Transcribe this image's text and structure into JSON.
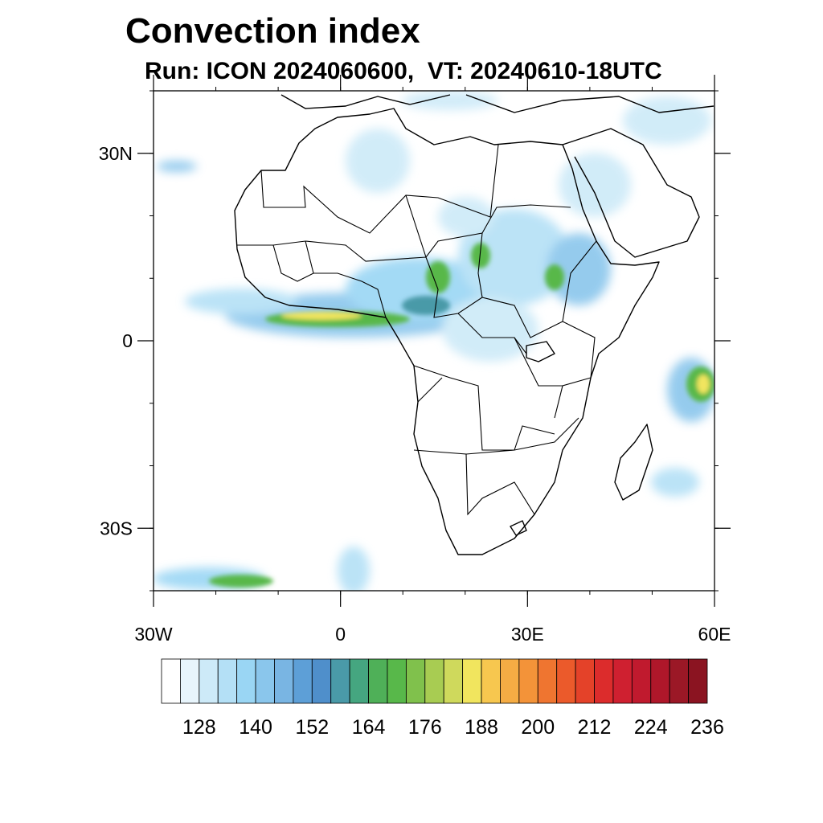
{
  "title": "Convection index",
  "subtitle": "Run: ICON 2024060600,  VT: 20240610-18UTC",
  "map": {
    "lon_range": [
      -30,
      60
    ],
    "lat_range": [
      -40,
      40
    ],
    "lat_ticks": [
      {
        "value": 30,
        "label": "30N"
      },
      {
        "value": 0,
        "label": "0"
      },
      {
        "value": -30,
        "label": "30S"
      }
    ],
    "lon_ticks": [
      {
        "value": -30,
        "label": "30W"
      },
      {
        "value": 0,
        "label": "0"
      },
      {
        "value": 30,
        "label": "30E"
      },
      {
        "value": 60,
        "label": "60E"
      }
    ]
  },
  "colorbar": {
    "colors": [
      "#ffffff",
      "#e8f5fc",
      "#cdeaf8",
      "#b4e0f6",
      "#9ad6f4",
      "#8ac6ec",
      "#79b5e3",
      "#5d9fd7",
      "#4f8fcb",
      "#4a9aa8",
      "#45a680",
      "#4fb058",
      "#58b84a",
      "#80c14c",
      "#a8cc52",
      "#cfd95c",
      "#f1e55e",
      "#f7c74f",
      "#f5ac44",
      "#f39339",
      "#ef7530",
      "#eb5a2b",
      "#e44229",
      "#dc2c2c",
      "#cf2030",
      "#c01a2e",
      "#af172a",
      "#9b1826",
      "#8b1421"
    ],
    "tick_labels": [
      "128",
      "140",
      "152",
      "164",
      "176",
      "188",
      "200",
      "212",
      "224",
      "236"
    ],
    "tick_values": [
      128,
      140,
      152,
      164,
      176,
      188,
      200,
      212,
      224,
      236
    ],
    "value_start": 120,
    "value_step": 4
  }
}
